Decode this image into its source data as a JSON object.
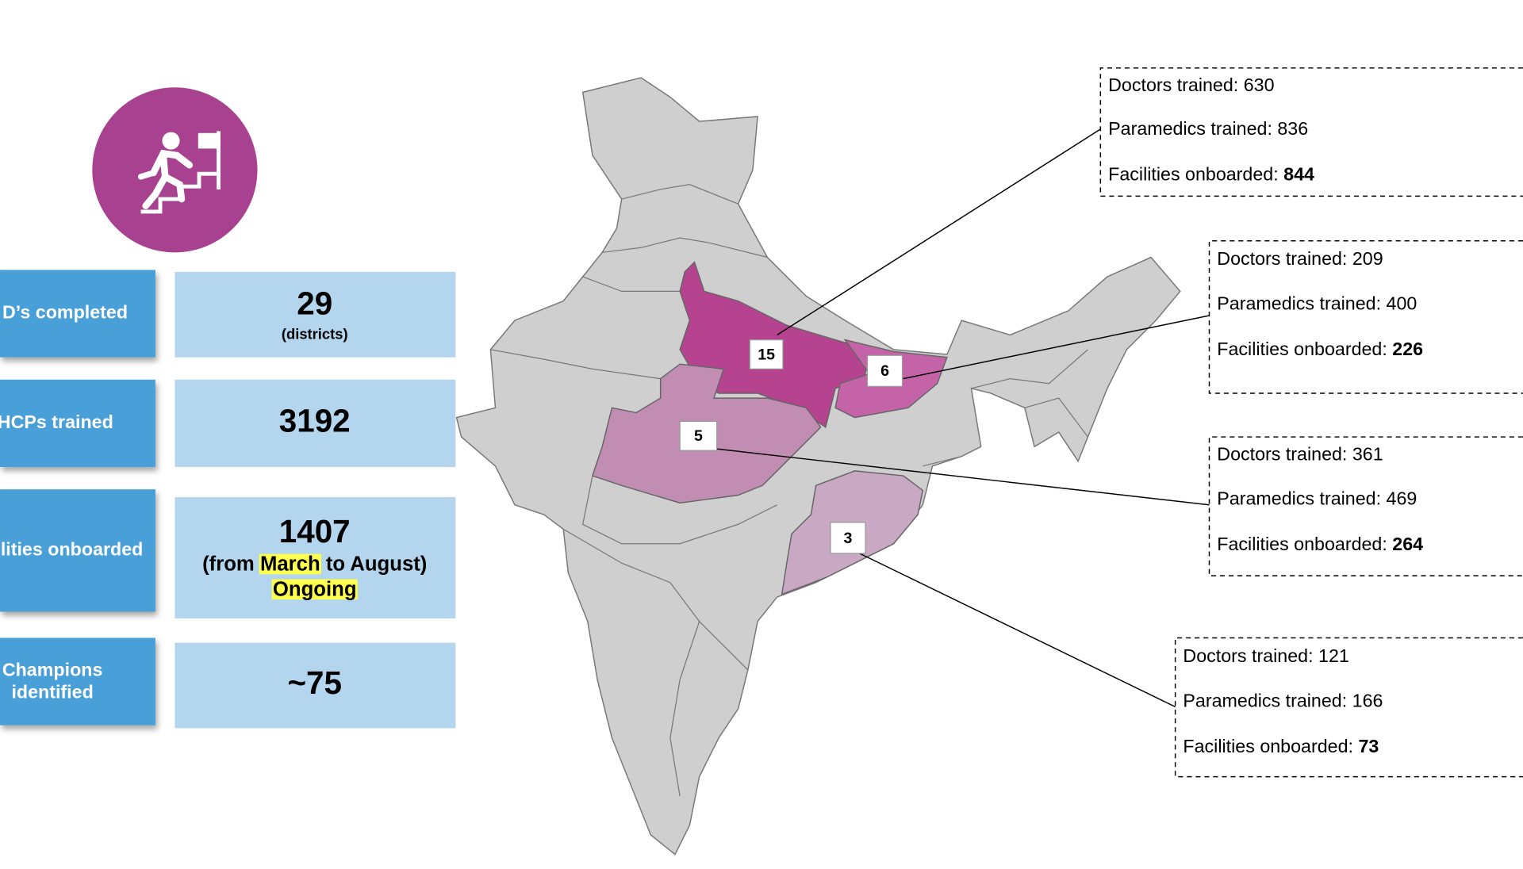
{
  "stats": [
    {
      "label": "D’s completed",
      "value": "29",
      "note": "(districts)"
    },
    {
      "label": "HCPs trained",
      "value": "3192"
    },
    {
      "label": "lities onboarded",
      "value": "1407",
      "note": {
        "before": "(from",
        "highlight": "March",
        "after": "to August)"
      },
      "status": "Ongoing"
    },
    {
      "label": [
        "Champions",
        "identified"
      ],
      "value": "~75"
    }
  ],
  "callouts": [
    {
      "marker": "15",
      "lines": [
        {
          "label": "Doctors trained:",
          "value": "630"
        },
        {
          "label": "Paramedics trained:",
          "value": "836"
        },
        {
          "label": "Facilities onboarded:",
          "value": "844"
        }
      ]
    },
    {
      "marker": "6",
      "lines": [
        {
          "label": "Doctors trained:",
          "value": "209"
        },
        {
          "label": "Paramedics trained:",
          "value": "400"
        },
        {
          "label": "Facilities onboarded:",
          "value": "226"
        }
      ]
    },
    {
      "marker": "5",
      "lines": [
        {
          "label": "Doctors trained:",
          "value": "361"
        },
        {
          "label": "Paramedics trained:",
          "value": "469"
        },
        {
          "label": "Facilities onboarded:",
          "value": "264"
        }
      ]
    },
    {
      "marker": "3",
      "lines": [
        {
          "label": "Doctors trained:",
          "value": "121"
        },
        {
          "label": "Paramedics trained:",
          "value": "166"
        },
        {
          "label": "Facilities onboarded:",
          "value": "73"
        }
      ]
    }
  ]
}
